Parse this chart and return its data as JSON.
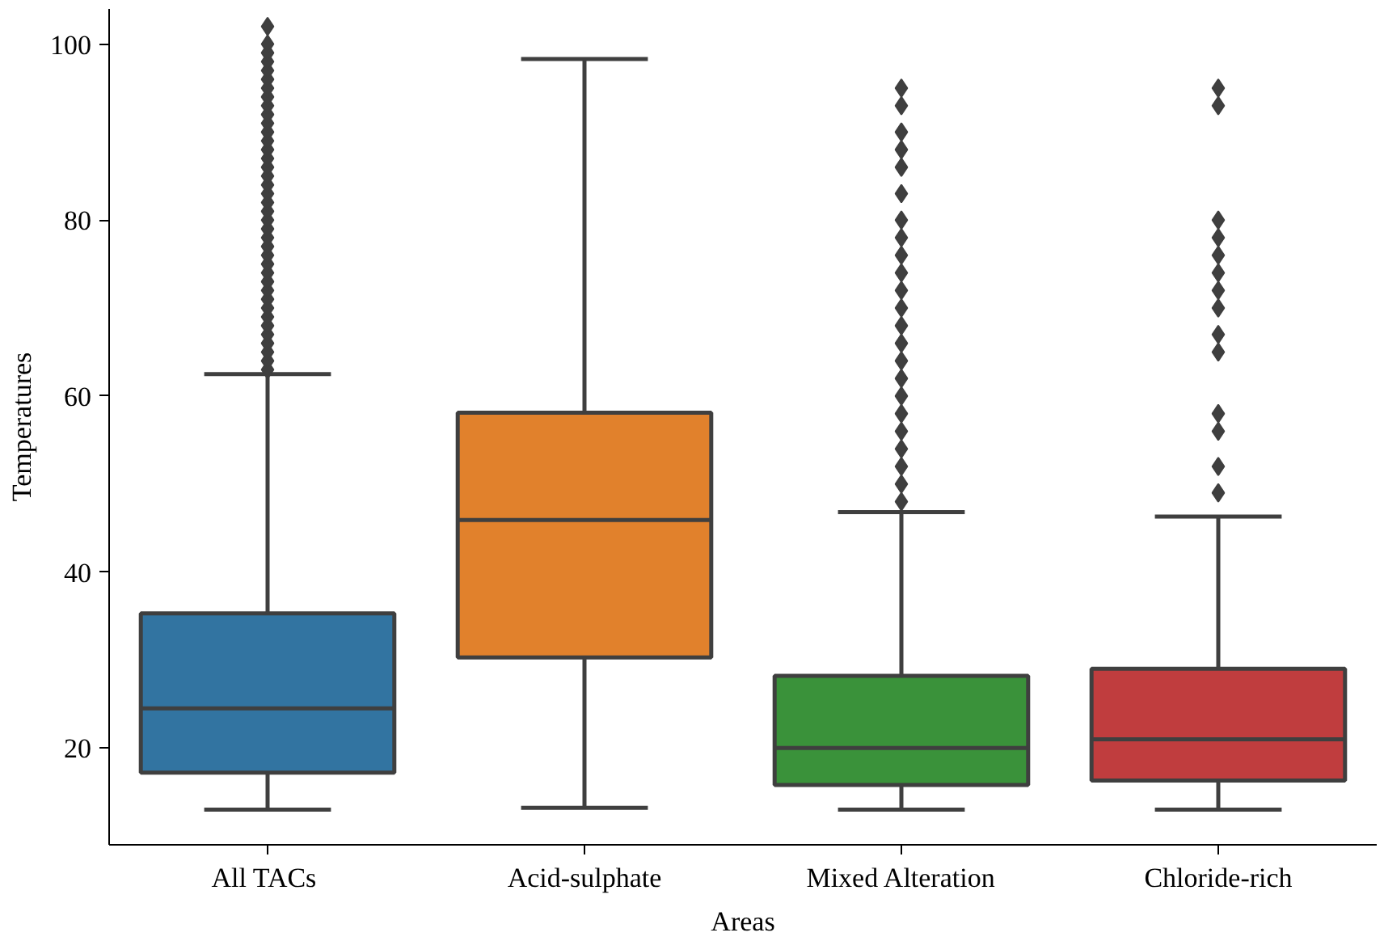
{
  "chart_data": {
    "type": "box",
    "xlabel": "Areas",
    "ylabel": "Temperatures",
    "categories": [
      "All  TACs",
      "Acid-sulphate",
      "Mixed Alteration",
      "Chloride-rich"
    ],
    "colors": [
      "#3274a1",
      "#e1812c",
      "#3a923a",
      "#c03d3e"
    ],
    "boxes": [
      {
        "low": 13,
        "q1": 17.2,
        "median": 24.5,
        "q3": 35.3,
        "high": 62.5,
        "outliers": [
          63,
          64,
          65,
          66,
          67,
          68,
          69,
          70,
          71,
          72,
          73,
          74,
          75,
          76,
          77,
          78,
          79,
          80,
          81,
          82,
          83,
          84,
          85,
          86,
          87,
          88,
          89,
          90,
          91,
          92,
          93,
          94,
          95,
          96,
          97,
          98,
          99,
          100,
          102
        ]
      },
      {
        "low": 13.2,
        "q1": 30.3,
        "median": 45.9,
        "q3": 58.1,
        "high": 98.3
      },
      {
        "low": 13,
        "q1": 15.8,
        "median": 20,
        "q3": 28.2,
        "high": 46.8,
        "outliers": [
          48,
          50,
          52,
          54,
          56,
          58,
          60,
          62,
          64,
          66,
          68,
          70,
          72,
          74,
          76,
          78,
          80,
          83,
          86,
          88,
          90,
          93,
          95
        ]
      },
      {
        "low": 13,
        "q1": 16.3,
        "median": 21,
        "q3": 29,
        "high": 46.3,
        "outliers": [
          49,
          52,
          56,
          58,
          65,
          67,
          70,
          72,
          74,
          76,
          78,
          80,
          93,
          95
        ]
      }
    ],
    "ylim": [
      9,
      104
    ],
    "yticks": [
      20,
      40,
      60,
      80,
      100
    ],
    "grid": false,
    "marker": "diamond"
  }
}
